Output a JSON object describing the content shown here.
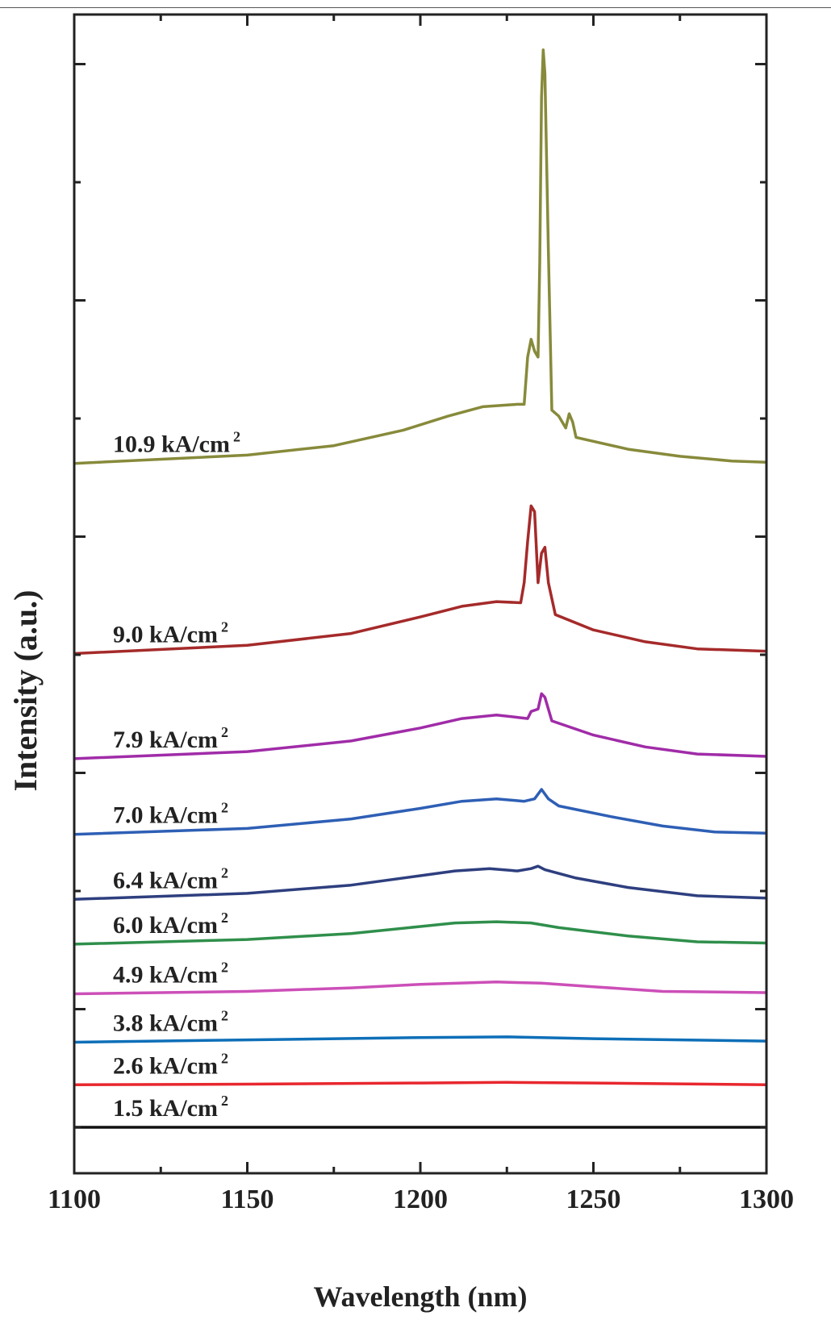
{
  "chart_data": {
    "type": "line",
    "title": "",
    "xlabel": "Wavelength (nm)",
    "ylabel": "Intensity (a.u.)",
    "xlim": [
      1100,
      1300
    ],
    "ylim": [
      0,
      10
    ],
    "x_ticks": [
      "1100",
      "1150",
      "1200",
      "1250",
      "1300"
    ],
    "y_tick_labels": "none",
    "grid": false,
    "legend": "none (inline labels on the left of each curve)",
    "offset_note": "curves vertically stacked; values are relative intensity above each curve's baseline",
    "series": [
      {
        "name": "1.5 kA/cm2",
        "label": "1.5 kA/cm",
        "sup": "2",
        "color": "#111111",
        "baseline": 0.0,
        "points": [
          [
            1100,
            0
          ],
          [
            1300,
            0
          ]
        ]
      },
      {
        "name": "2.6 kA/cm2",
        "label": "2.6 kA/cm",
        "sup": "2",
        "color": "#e8272e",
        "baseline": 0.36,
        "points": [
          [
            1100,
            0
          ],
          [
            1150,
            0.005
          ],
          [
            1200,
            0.015
          ],
          [
            1225,
            0.02
          ],
          [
            1250,
            0.015
          ],
          [
            1300,
            0
          ]
        ]
      },
      {
        "name": "3.8 kA/cm2",
        "label": "3.8 kA/cm",
        "sup": "2",
        "color": "#0e6fb8",
        "baseline": 0.72,
        "points": [
          [
            1100,
            0
          ],
          [
            1150,
            0.02
          ],
          [
            1200,
            0.04
          ],
          [
            1225,
            0.045
          ],
          [
            1250,
            0.03
          ],
          [
            1300,
            0.01
          ]
        ]
      },
      {
        "name": "4.9 kA/cm2",
        "label": "4.9 kA/cm",
        "sup": "2",
        "color": "#cc4fb8",
        "baseline": 1.13,
        "points": [
          [
            1100,
            0
          ],
          [
            1150,
            0.02
          ],
          [
            1180,
            0.05
          ],
          [
            1200,
            0.08
          ],
          [
            1222,
            0.1
          ],
          [
            1235,
            0.09
          ],
          [
            1250,
            0.06
          ],
          [
            1270,
            0.02
          ],
          [
            1300,
            0.01
          ]
        ]
      },
      {
        "name": "6.0 kA/cm2",
        "label": "6.0 kA/cm",
        "sup": "2",
        "color": "#2f8f4b",
        "baseline": 1.55,
        "points": [
          [
            1100,
            0
          ],
          [
            1150,
            0.04
          ],
          [
            1180,
            0.09
          ],
          [
            1200,
            0.15
          ],
          [
            1210,
            0.18
          ],
          [
            1222,
            0.19
          ],
          [
            1232,
            0.18
          ],
          [
            1240,
            0.14
          ],
          [
            1260,
            0.07
          ],
          [
            1280,
            0.02
          ],
          [
            1300,
            0.01
          ]
        ]
      },
      {
        "name": "6.4 kA/cm2",
        "label": "6.4 kA/cm",
        "sup": "2",
        "color": "#2e3f7f",
        "baseline": 1.93,
        "points": [
          [
            1100,
            0
          ],
          [
            1150,
            0.05
          ],
          [
            1180,
            0.12
          ],
          [
            1200,
            0.2
          ],
          [
            1210,
            0.24
          ],
          [
            1220,
            0.26
          ],
          [
            1228,
            0.24
          ],
          [
            1232,
            0.26
          ],
          [
            1234,
            0.28
          ],
          [
            1236,
            0.25
          ],
          [
            1245,
            0.18
          ],
          [
            1260,
            0.1
          ],
          [
            1280,
            0.03
          ],
          [
            1300,
            0.01
          ]
        ]
      },
      {
        "name": "7.0 kA/cm2",
        "label": "7.0 kA/cm",
        "sup": "2",
        "color": "#2e5fb5",
        "baseline": 2.48,
        "points": [
          [
            1100,
            0
          ],
          [
            1150,
            0.05
          ],
          [
            1180,
            0.13
          ],
          [
            1200,
            0.22
          ],
          [
            1212,
            0.28
          ],
          [
            1222,
            0.3
          ],
          [
            1230,
            0.28
          ],
          [
            1233,
            0.3
          ],
          [
            1235,
            0.38
          ],
          [
            1237,
            0.3
          ],
          [
            1240,
            0.24
          ],
          [
            1255,
            0.15
          ],
          [
            1270,
            0.07
          ],
          [
            1285,
            0.02
          ],
          [
            1300,
            0.01
          ]
        ]
      },
      {
        "name": "7.9 kA/cm2",
        "label": "7.9 kA/cm",
        "sup": "2",
        "color": "#a02ca8",
        "baseline": 3.12,
        "points": [
          [
            1100,
            0
          ],
          [
            1150,
            0.06
          ],
          [
            1180,
            0.15
          ],
          [
            1200,
            0.26
          ],
          [
            1212,
            0.34
          ],
          [
            1222,
            0.37
          ],
          [
            1228,
            0.35
          ],
          [
            1231,
            0.34
          ],
          [
            1232,
            0.4
          ],
          [
            1234,
            0.42
          ],
          [
            1235,
            0.55
          ],
          [
            1236,
            0.52
          ],
          [
            1237,
            0.42
          ],
          [
            1238,
            0.32
          ],
          [
            1250,
            0.2
          ],
          [
            1265,
            0.1
          ],
          [
            1280,
            0.04
          ],
          [
            1300,
            0.02
          ]
        ]
      },
      {
        "name": "9.0 kA/cm2",
        "label": "9.0 kA/cm",
        "sup": "2",
        "color": "#a52a2a",
        "baseline": 4.01,
        "points": [
          [
            1100,
            0
          ],
          [
            1150,
            0.07
          ],
          [
            1180,
            0.17
          ],
          [
            1200,
            0.31
          ],
          [
            1212,
            0.4
          ],
          [
            1222,
            0.44
          ],
          [
            1229,
            0.43
          ],
          [
            1230,
            0.6
          ],
          [
            1231,
            0.95
          ],
          [
            1232,
            1.25
          ],
          [
            1233,
            1.2
          ],
          [
            1234,
            0.6
          ],
          [
            1235,
            0.85
          ],
          [
            1236,
            0.9
          ],
          [
            1237,
            0.6
          ],
          [
            1239,
            0.33
          ],
          [
            1250,
            0.2
          ],
          [
            1265,
            0.1
          ],
          [
            1280,
            0.04
          ],
          [
            1300,
            0.02
          ]
        ]
      },
      {
        "name": "10.9 kA/cm2",
        "label": "10.9 kA/cm",
        "sup": "2",
        "color": "#878a3a",
        "baseline": 5.62,
        "points": [
          [
            1100,
            0
          ],
          [
            1150,
            0.07
          ],
          [
            1175,
            0.15
          ],
          [
            1195,
            0.28
          ],
          [
            1208,
            0.4
          ],
          [
            1218,
            0.48
          ],
          [
            1228,
            0.5
          ],
          [
            1230,
            0.5
          ],
          [
            1231,
            0.9
          ],
          [
            1232,
            1.05
          ],
          [
            1233,
            0.95
          ],
          [
            1234,
            0.9
          ],
          [
            1234.5,
            1.7
          ],
          [
            1235,
            3.1
          ],
          [
            1235.5,
            3.5
          ],
          [
            1236,
            3.3
          ],
          [
            1237,
            1.8
          ],
          [
            1238,
            0.45
          ],
          [
            1240,
            0.4
          ],
          [
            1242,
            0.3
          ],
          [
            1243,
            0.42
          ],
          [
            1244,
            0.35
          ],
          [
            1245,
            0.22
          ],
          [
            1260,
            0.12
          ],
          [
            1275,
            0.06
          ],
          [
            1290,
            0.02
          ],
          [
            1300,
            0.01
          ]
        ]
      }
    ]
  }
}
